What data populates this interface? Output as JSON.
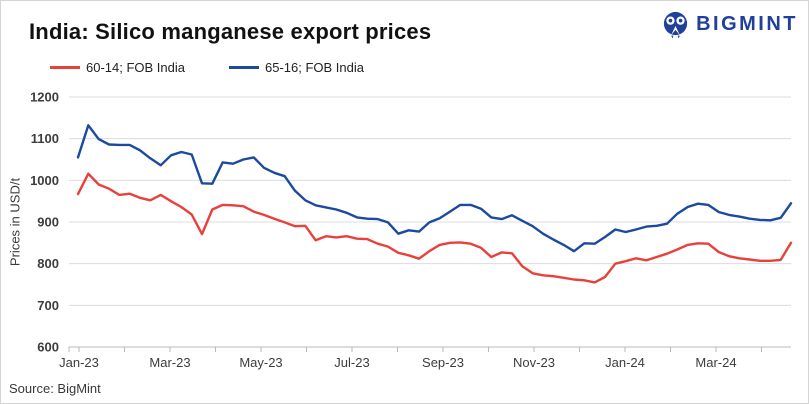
{
  "header": {
    "title": "India: Silico manganese export prices",
    "logo_text": "BIGMINT",
    "logo_color": "#20409a"
  },
  "legend": [
    {
      "label": "60-14; FOB India",
      "color": "#e8413c"
    },
    {
      "label": "65-16; FOB India",
      "color": "#1b4a9e"
    }
  ],
  "source": "Source: BigMint",
  "chart_data": {
    "type": "line",
    "title": "India: Silico manganese export prices",
    "xlabel": "",
    "ylabel": "Prices in USD/t",
    "ylim": [
      600,
      1200
    ],
    "y_ticks": [
      600,
      700,
      800,
      900,
      1000,
      1100,
      1200
    ],
    "x_tick_labels": [
      "Jan-23",
      "Mar-23",
      "May-23",
      "Jul-23",
      "Sep-23",
      "Nov-23",
      "Jan-24",
      "Mar-24"
    ],
    "x_unit": "weekly points, Jan-2023 to late Apr-2024",
    "grid": "horizontal",
    "legend_position": "top-left",
    "gridline_color": "#dcdcdc",
    "axis_color": "#b9b9b9",
    "series": [
      {
        "name": "60-14; FOB India",
        "color": "#e8413c",
        "values": [
          967,
          1016,
          990,
          980,
          965,
          968,
          958,
          952,
          965,
          950,
          936,
          918,
          871,
          930,
          941,
          940,
          938,
          925,
          917,
          908,
          899,
          890,
          891,
          856,
          866,
          863,
          866,
          860,
          859,
          848,
          841,
          826,
          820,
          812,
          830,
          845,
          850,
          851,
          848,
          838,
          816,
          827,
          825,
          794,
          777,
          772,
          770,
          766,
          762,
          760,
          755,
          768,
          800,
          806,
          813,
          808,
          816,
          824,
          834,
          845,
          849,
          848,
          828,
          818,
          813,
          810,
          807,
          807,
          809,
          850
        ]
      },
      {
        "name": "65-16; FOB India",
        "color": "#1b4a9e",
        "values": [
          1055,
          1132,
          1099,
          1086,
          1085,
          1085,
          1072,
          1053,
          1036,
          1060,
          1068,
          1062,
          993,
          992,
          1043,
          1040,
          1050,
          1055,
          1030,
          1018,
          1010,
          975,
          952,
          940,
          935,
          930,
          922,
          911,
          908,
          907,
          899,
          872,
          880,
          877,
          899,
          909,
          925,
          941,
          941,
          932,
          911,
          907,
          916,
          903,
          890,
          872,
          858,
          845,
          830,
          849,
          848,
          864,
          882,
          876,
          882,
          889,
          891,
          896,
          920,
          936,
          944,
          941,
          924,
          917,
          913,
          908,
          905,
          904,
          910,
          945
        ]
      }
    ]
  }
}
